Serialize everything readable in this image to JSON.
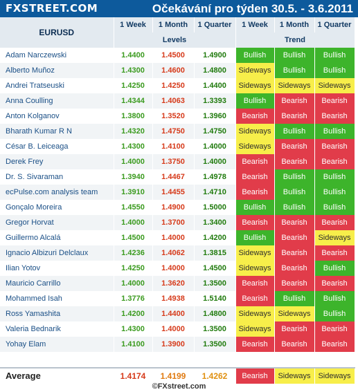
{
  "header": {
    "logo": "FXSTREET.COM",
    "title": "Očekávání pro týden 30.5. - 3.6.2011"
  },
  "columns": {
    "pair": "EURUSD",
    "week": "1 Week",
    "month": "1 Month",
    "quarter": "1 Quarter",
    "levels": "Levels",
    "trend": "Trend"
  },
  "colors": {
    "bullish": "#3db42b",
    "bearish": "#e13c4a",
    "sideways": "#f7ee4a",
    "header": "#0d5a9c"
  },
  "rows": [
    {
      "name": "Adam Narczewski",
      "w": "1.4400",
      "m": "1.4500",
      "q": "1.4900",
      "tw": "Bullish",
      "tm": "Bullish",
      "tq": "Bullish"
    },
    {
      "name": "Alberto Muñoz",
      "w": "1.4300",
      "m": "1.4600",
      "q": "1.4800",
      "tw": "Sideways",
      "tm": "Bullish",
      "tq": "Bullish"
    },
    {
      "name": "Andrei Tratseuski",
      "w": "1.4250",
      "m": "1.4250",
      "q": "1.4400",
      "tw": "Sideways",
      "tm": "Sideways",
      "tq": "Sideways"
    },
    {
      "name": "Anna Coulling",
      "w": "1.4344",
      "m": "1.4063",
      "q": "1.3393",
      "tw": "Bullish",
      "tm": "Bearish",
      "tq": "Bearish"
    },
    {
      "name": "Anton Kolganov",
      "w": "1.3800",
      "m": "1.3520",
      "q": "1.3960",
      "tw": "Bearish",
      "tm": "Bearish",
      "tq": "Bearish"
    },
    {
      "name": "Bharath Kumar R N",
      "w": "1.4320",
      "m": "1.4750",
      "q": "1.4750",
      "tw": "Sideways",
      "tm": "Bullish",
      "tq": "Bullish"
    },
    {
      "name": "César B. Leiceaga",
      "w": "1.4300",
      "m": "1.4100",
      "q": "1.4000",
      "tw": "Sideways",
      "tm": "Bearish",
      "tq": "Bearish"
    },
    {
      "name": "Derek Frey",
      "w": "1.4000",
      "m": "1.3750",
      "q": "1.4000",
      "tw": "Bearish",
      "tm": "Bearish",
      "tq": "Bearish"
    },
    {
      "name": "Dr. S. Sivaraman",
      "w": "1.3940",
      "m": "1.4467",
      "q": "1.4978",
      "tw": "Bearish",
      "tm": "Bullish",
      "tq": "Bullish"
    },
    {
      "name": "ecPulse.com analysis team",
      "w": "1.3910",
      "m": "1.4455",
      "q": "1.4710",
      "tw": "Bearish",
      "tm": "Bullish",
      "tq": "Bullish"
    },
    {
      "name": "Gonçalo Moreira",
      "w": "1.4550",
      "m": "1.4900",
      "q": "1.5000",
      "tw": "Bullish",
      "tm": "Bullish",
      "tq": "Bullish"
    },
    {
      "name": "Gregor Horvat",
      "w": "1.4000",
      "m": "1.3700",
      "q": "1.3400",
      "tw": "Bearish",
      "tm": "Bearish",
      "tq": "Bearish"
    },
    {
      "name": "Guillermo Alcalá",
      "w": "1.4500",
      "m": "1.4000",
      "q": "1.4200",
      "tw": "Bullish",
      "tm": "Bearish",
      "tq": "Sideways"
    },
    {
      "name": "Ignacio Albizuri Delclaux",
      "w": "1.4236",
      "m": "1.4062",
      "q": "1.3815",
      "tw": "Sideways",
      "tm": "Bearish",
      "tq": "Bearish"
    },
    {
      "name": "Ilian Yotov",
      "w": "1.4250",
      "m": "1.4000",
      "q": "1.4500",
      "tw": "Sideways",
      "tm": "Bearish",
      "tq": "Bullish"
    },
    {
      "name": "Mauricio Carrillo",
      "w": "1.4000",
      "m": "1.3620",
      "q": "1.3500",
      "tw": "Bearish",
      "tm": "Bearish",
      "tq": "Bearish"
    },
    {
      "name": "Mohammed Isah",
      "w": "1.3776",
      "m": "1.4938",
      "q": "1.5140",
      "tw": "Bearish",
      "tm": "Bullish",
      "tq": "Bullish"
    },
    {
      "name": "Ross Yamashita",
      "w": "1.4200",
      "m": "1.4400",
      "q": "1.4800",
      "tw": "Sideways",
      "tm": "Sideways",
      "tq": "Bullish"
    },
    {
      "name": "Valeria Bednarik",
      "w": "1.4300",
      "m": "1.4000",
      "q": "1.3500",
      "tw": "Sideways",
      "tm": "Bearish",
      "tq": "Bearish"
    },
    {
      "name": "Yohay Elam",
      "w": "1.4100",
      "m": "1.3900",
      "q": "1.3500",
      "tw": "Bearish",
      "tm": "Bearish",
      "tq": "Bearish"
    }
  ],
  "average": {
    "label": "Average",
    "w": "1.4174",
    "m": "1.4199",
    "q": "1.4262",
    "tw": "Bearish",
    "tm": "Sideways",
    "tq": "Sideways"
  },
  "footer": "©FXstreet.com"
}
